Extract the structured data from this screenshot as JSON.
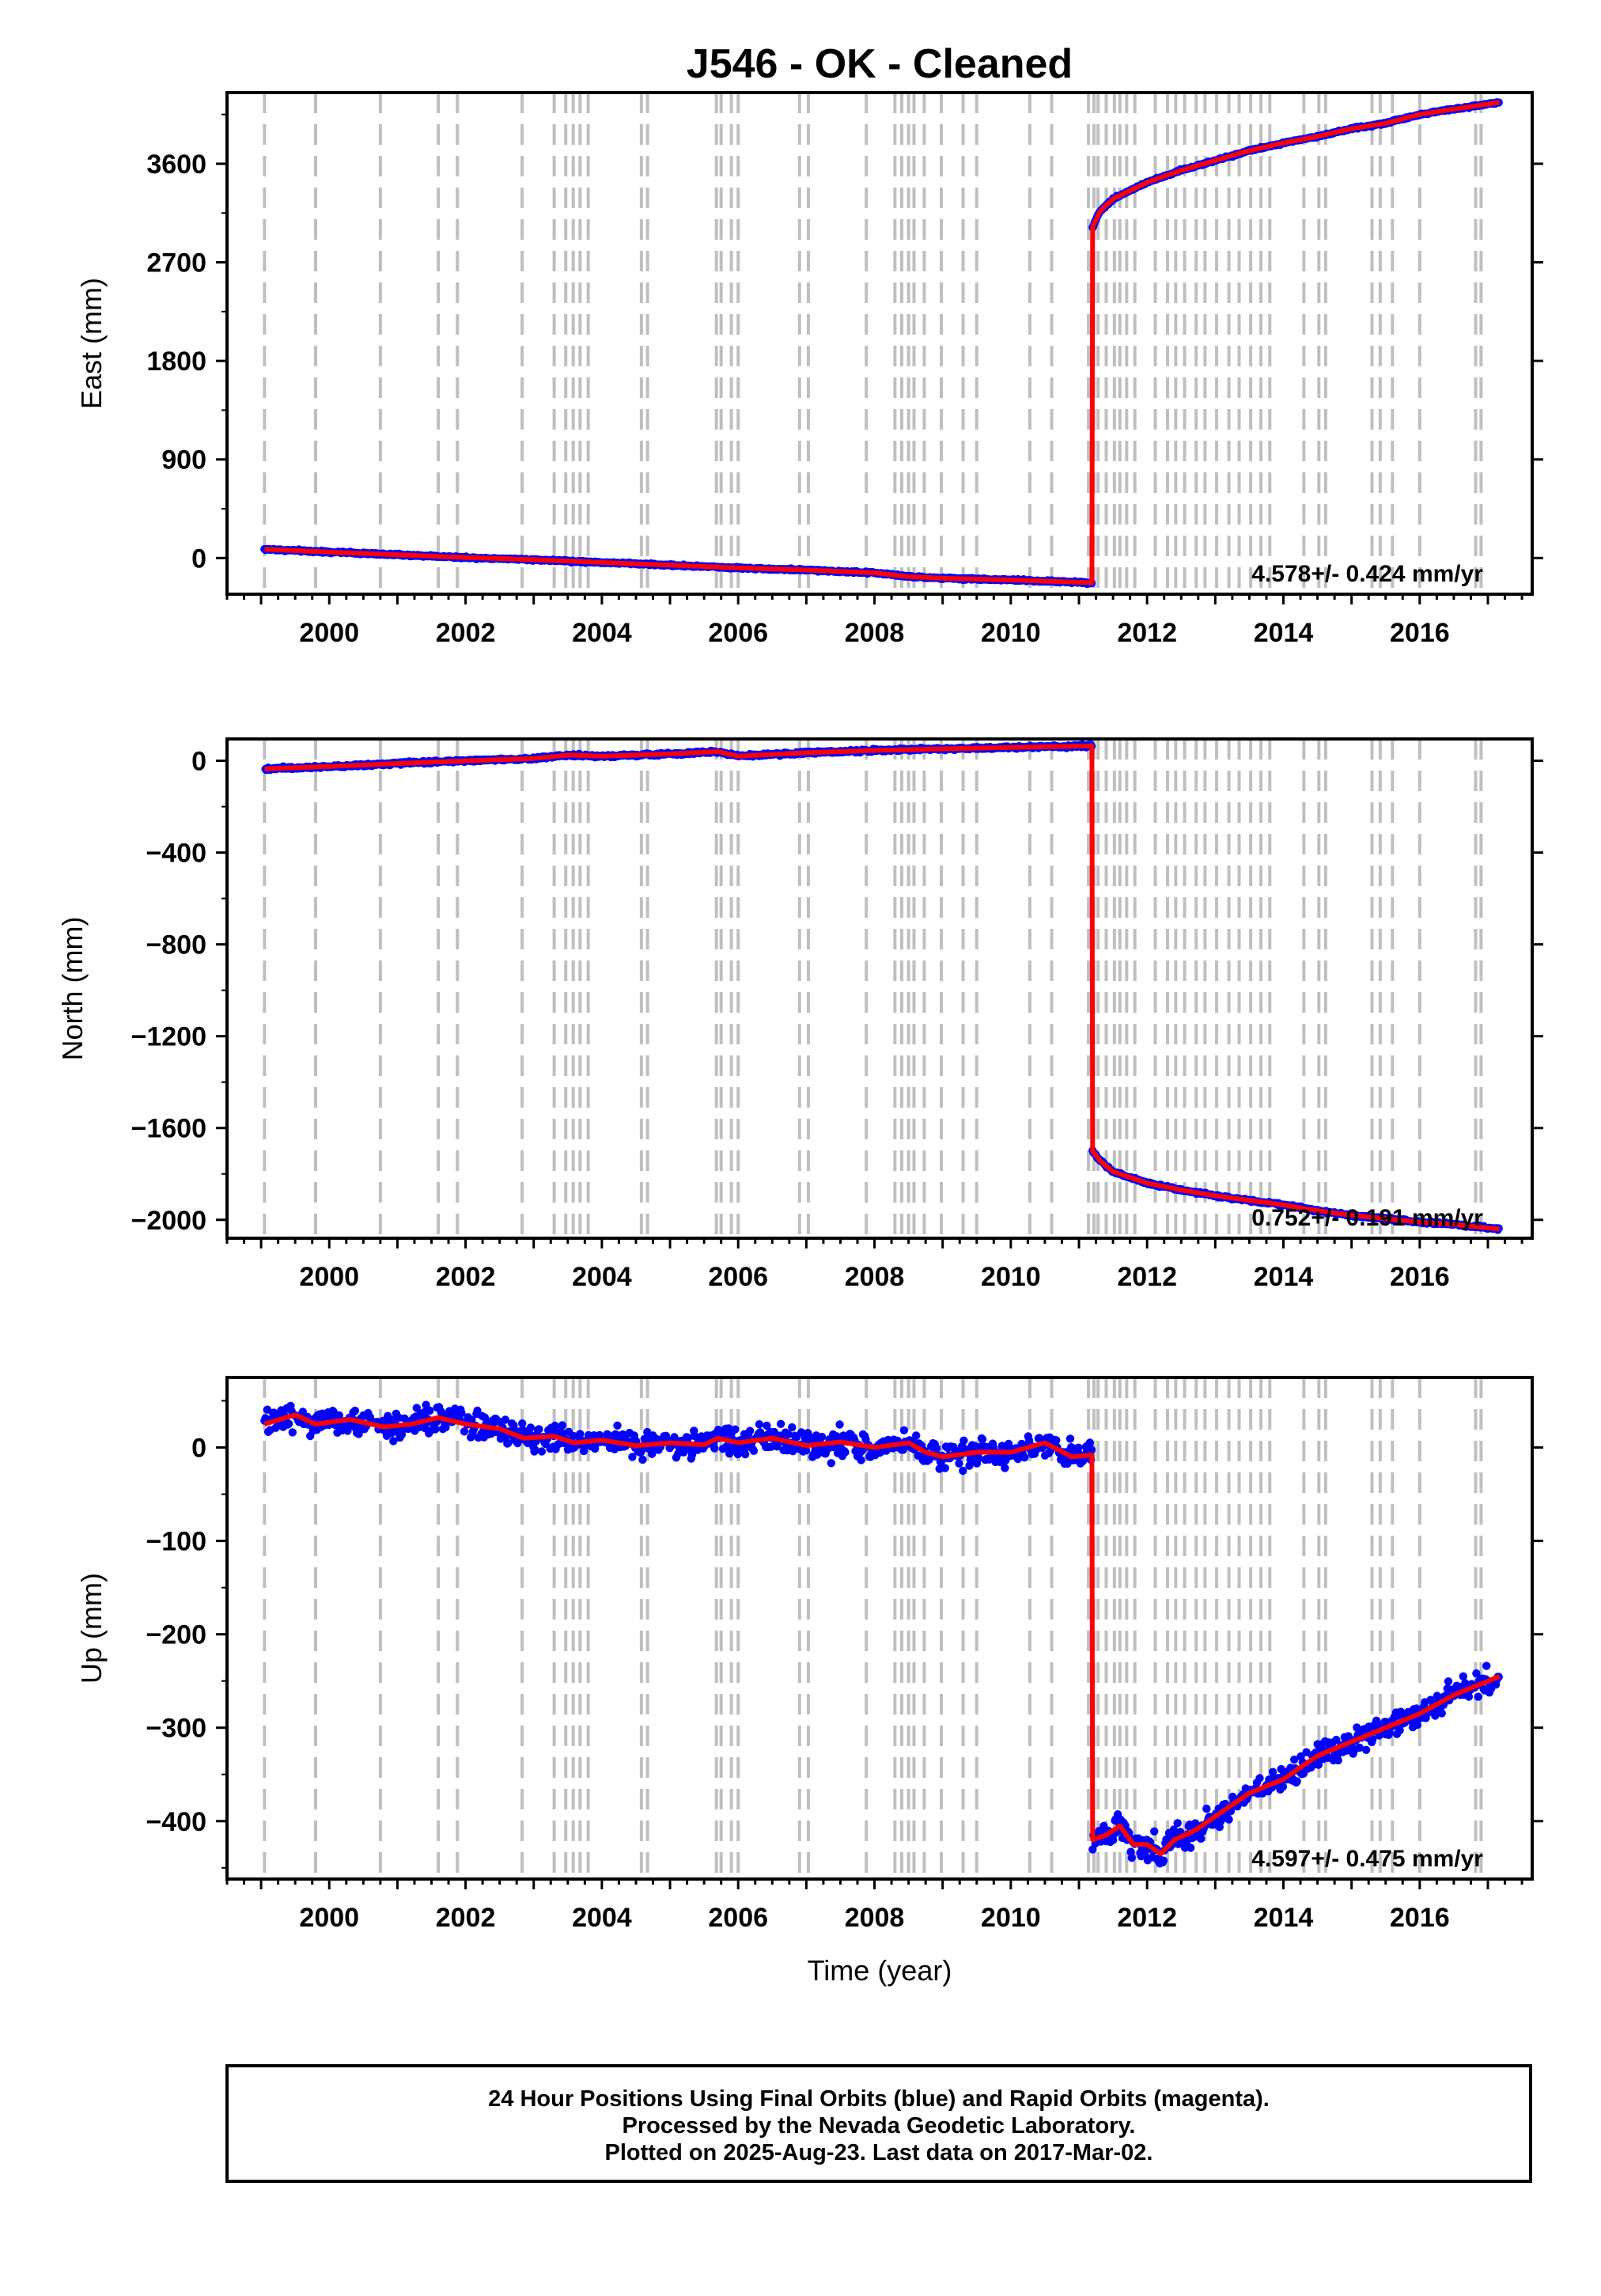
{
  "title": "J546  - OK - Cleaned",
  "x_axis_label": "Time (year)",
  "caption": [
    "24 Hour Positions Using Final Orbits (blue) and Rapid Orbits (magenta).",
    "Processed by the Nevada Geodetic Laboratory.",
    "Plotted on 2025-Aug-23. Last data on 2017-Mar-02."
  ],
  "colors": {
    "data_points": "#0000ff",
    "model_line": "#ff0000",
    "event_lines": "#bfbfbf",
    "frame": "#000000"
  },
  "event_years": [
    1999.05,
    1999.8,
    2000.75,
    2001.6,
    2001.88,
    2002.83,
    2003.3,
    2003.47,
    2003.58,
    2003.68,
    2003.8,
    2004.58,
    2004.67,
    2005.68,
    2005.75,
    2005.9,
    2006.0,
    2006.9,
    2007.03,
    2007.88,
    2008.3,
    2008.4,
    2008.5,
    2008.58,
    2008.73,
    2008.98,
    2009.3,
    2009.5,
    2010.28,
    2010.6,
    2011.14,
    2011.22,
    2011.28,
    2011.4,
    2011.52,
    2011.6,
    2011.7,
    2011.82,
    2012.12,
    2012.3,
    2012.42,
    2012.55,
    2012.72,
    2012.85,
    2013.02,
    2013.2,
    2013.35,
    2013.52,
    2013.67,
    2013.8,
    2014.3,
    2014.52,
    2014.62,
    2015.3,
    2015.42,
    2015.6,
    2016.0,
    2016.82,
    2016.9
  ],
  "chart_data": [
    {
      "type": "scatter",
      "component": "East",
      "ylabel": "East (mm)",
      "xlim": [
        1998.5,
        2017.65
      ],
      "ylim": [
        -330,
        4250
      ],
      "xticks": [
        2000,
        2002,
        2004,
        2006,
        2008,
        2010,
        2012,
        2014,
        2016
      ],
      "yticks": [
        0,
        900,
        1800,
        2700,
        3600
      ],
      "rate_label": "4.578+/- 0.424 mm/yr",
      "noise_mm": 6,
      "series": [
        {
          "segment": "pre-event",
          "x": [
            1999.05,
            2000.0,
            2001.0,
            2002.0,
            2003.0,
            2004.0,
            2005.0,
            2006.0,
            2007.0,
            2008.0,
            2008.5,
            2009.0,
            2010.0,
            2011.19
          ],
          "y": [
            80,
            55,
            30,
            5,
            -15,
            -40,
            -65,
            -90,
            -110,
            -135,
            -170,
            -185,
            -200,
            -225
          ]
        },
        {
          "segment": "post-event",
          "x": [
            2011.2,
            2011.3,
            2011.5,
            2012.0,
            2012.5,
            2013.0,
            2013.5,
            2014.0,
            2014.5,
            2015.0,
            2015.5,
            2016.0,
            2016.5,
            2017.17
          ],
          "y": [
            3020,
            3160,
            3280,
            3430,
            3540,
            3630,
            3720,
            3790,
            3850,
            3920,
            3970,
            4050,
            4100,
            4160
          ]
        }
      ]
    },
    {
      "type": "scatter",
      "component": "North",
      "ylabel": "North (mm)",
      "xlim": [
        1998.5,
        2017.65
      ],
      "ylim": [
        -2080,
        95
      ],
      "xticks": [
        2000,
        2002,
        2004,
        2006,
        2008,
        2010,
        2012,
        2014,
        2016
      ],
      "yticks": [
        0,
        -400,
        -800,
        -1200,
        -1600,
        -2000
      ],
      "rate_label": "0.752+/- 0.191 mm/yr",
      "noise_mm": 4,
      "series": [
        {
          "segment": "pre-event",
          "x": [
            1999.05,
            2000.0,
            2001.0,
            2002.0,
            2003.0,
            2003.5,
            2004.0,
            2005.0,
            2005.7,
            2006.0,
            2007.0,
            2008.0,
            2009.0,
            2010.0,
            2011.19
          ],
          "y": [
            -35,
            -25,
            -12,
            0,
            10,
            25,
            20,
            30,
            40,
            20,
            35,
            45,
            52,
            58,
            65
          ]
        },
        {
          "segment": "post-event",
          "x": [
            2011.2,
            2011.3,
            2011.5,
            2012.0,
            2012.5,
            2013.0,
            2013.5,
            2014.0,
            2014.5,
            2015.0,
            2015.5,
            2016.0,
            2016.5,
            2017.17
          ],
          "y": [
            -1700,
            -1740,
            -1790,
            -1840,
            -1870,
            -1895,
            -1915,
            -1935,
            -1960,
            -1980,
            -1995,
            -2010,
            -2020,
            -2040
          ]
        }
      ]
    },
    {
      "type": "scatter",
      "component": "Up",
      "ylabel": "Up (mm)",
      "xlim": [
        1998.5,
        2017.65
      ],
      "ylim": [
        -462,
        75
      ],
      "xticks": [
        2000,
        2002,
        2004,
        2006,
        2008,
        2010,
        2012,
        2014,
        2016
      ],
      "yticks": [
        0,
        -100,
        -200,
        -300,
        -400
      ],
      "rate_label": "4.597+/- 0.475 mm/yr",
      "noise_mm": 10,
      "series": [
        {
          "segment": "pre-event",
          "x": [
            1999.05,
            1999.5,
            1999.8,
            2000.3,
            2000.8,
            2001.2,
            2001.6,
            2002.0,
            2002.5,
            2002.85,
            2003.3,
            2003.6,
            2004.0,
            2004.5,
            2005.0,
            2005.5,
            2005.7,
            2006.0,
            2006.5,
            2007.0,
            2007.5,
            2008.0,
            2008.5,
            2008.75,
            2009.0,
            2009.5,
            2010.0,
            2010.5,
            2010.9,
            2011.19
          ],
          "y": [
            25,
            35,
            25,
            30,
            22,
            25,
            32,
            25,
            20,
            10,
            12,
            5,
            8,
            2,
            5,
            3,
            10,
            5,
            10,
            2,
            6,
            0,
            5,
            -5,
            -10,
            -5,
            -5,
            5,
            -10,
            -8
          ]
        },
        {
          "segment": "post-event",
          "x": [
            2011.2,
            2011.4,
            2011.6,
            2011.8,
            2012.0,
            2012.2,
            2012.4,
            2012.7,
            2013.0,
            2013.5,
            2014.0,
            2014.5,
            2015.0,
            2015.5,
            2016.0,
            2016.5,
            2017.17
          ],
          "y": [
            -420,
            -415,
            -405,
            -425,
            -425,
            -435,
            -420,
            -410,
            -395,
            -370,
            -355,
            -330,
            -315,
            -300,
            -285,
            -265,
            -245
          ]
        }
      ]
    }
  ]
}
